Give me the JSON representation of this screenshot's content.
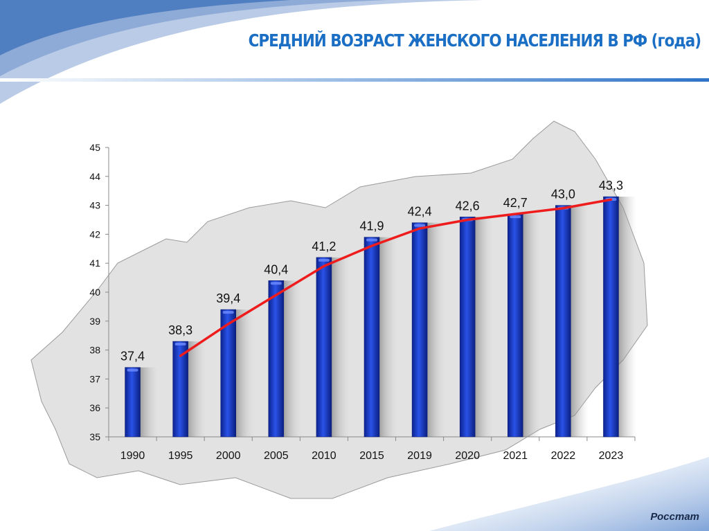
{
  "title": "СРЕДНИЙ ВОЗРАСТ ЖЕНСКОГО НАСЕЛЕНИЯ В РФ (года)",
  "source": "Росстат",
  "colors": {
    "title": "#1a6fc4",
    "bar": "#1538c8",
    "trendline": "#ee1c1c",
    "map": "#dcdcdc"
  },
  "chart_data": {
    "type": "bar",
    "categories": [
      "1990",
      "1995",
      "2000",
      "2005",
      "2010",
      "2015",
      "2019",
      "2020",
      "2021",
      "2022",
      "2023"
    ],
    "values": [
      37.4,
      38.3,
      39.4,
      40.4,
      41.2,
      41.9,
      42.4,
      42.6,
      42.7,
      43.0,
      43.3
    ],
    "data_labels": [
      "37,4",
      "38,3",
      "39,4",
      "40,4",
      "41,2",
      "41,9",
      "42,4",
      "42,6",
      "42,7",
      "43,0",
      "43,3"
    ],
    "ylim": [
      35,
      45
    ],
    "yticks": [
      35,
      36,
      37,
      38,
      39,
      40,
      41,
      42,
      43,
      44,
      45
    ],
    "grid": false,
    "trendline": {
      "type": "logarithmic",
      "from": "1995",
      "to": "2023",
      "values": [
        37.8,
        38.9,
        39.9,
        40.9,
        41.6,
        42.2,
        42.5,
        42.7,
        42.9,
        43.2
      ]
    },
    "background": "map of Russia"
  }
}
